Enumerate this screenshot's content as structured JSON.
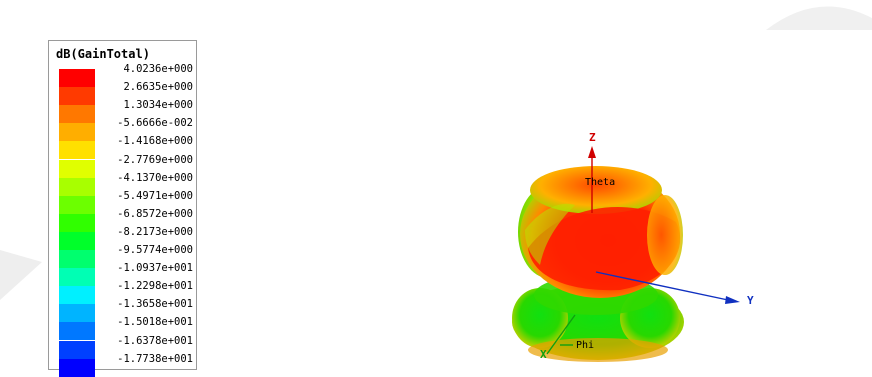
{
  "legend": {
    "title": "dB(GainTotal)",
    "levels": [
      {
        "label": "4.0236e+000",
        "color": "#ff0000"
      },
      {
        "label": "2.6635e+000",
        "color": "#ff3a00"
      },
      {
        "label": "1.3034e+000",
        "color": "#ff7800"
      },
      {
        "label": "-5.6666e-002",
        "color": "#ffae00"
      },
      {
        "label": "-1.4168e+000",
        "color": "#ffe000"
      },
      {
        "label": "-2.7769e+000",
        "color": "#e0ff00"
      },
      {
        "label": "-4.1370e+000",
        "color": "#a8ff00"
      },
      {
        "label": "-5.4971e+000",
        "color": "#6cff00"
      },
      {
        "label": "-6.8572e+000",
        "color": "#30ff00"
      },
      {
        "label": "-8.2173e+000",
        "color": "#00ff2a"
      },
      {
        "label": "-9.5774e+000",
        "color": "#00ff6e"
      },
      {
        "label": "-1.0937e+001",
        "color": "#00ffb4"
      },
      {
        "label": "-1.2298e+001",
        "color": "#00f0ff"
      },
      {
        "label": "-1.3658e+001",
        "color": "#00b4ff"
      },
      {
        "label": "-1.5018e+001",
        "color": "#0078ff"
      },
      {
        "label": "-1.6378e+001",
        "color": "#0040ff"
      },
      {
        "label": "-1.7738e+001",
        "color": "#0000ff"
      }
    ]
  },
  "axes": {
    "z_label": "Z",
    "y_label": "Y",
    "x_label": "X",
    "theta_label": "Theta",
    "phi_label": "Phi",
    "z_color": "#d00000",
    "y_color": "#1030c0",
    "x_color": "#10a010"
  }
}
